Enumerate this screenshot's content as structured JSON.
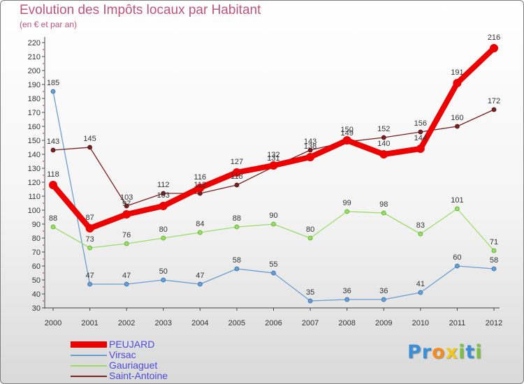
{
  "header": {
    "title": "Evolution des Impôts locaux par Habitant",
    "subtitle": "(en € et par an)"
  },
  "chart_data": {
    "type": "line",
    "title": "Evolution des Impôts locaux par Habitant",
    "subtitle": "(en € et par an)",
    "xlabel": "",
    "ylabel": "",
    "categories": [
      "2000",
      "2001",
      "2002",
      "2003",
      "2004",
      "2005",
      "2006",
      "2007",
      "2008",
      "2009",
      "2010",
      "2011",
      "2012"
    ],
    "ylim": [
      30,
      220
    ],
    "yticks": [
      30,
      40,
      50,
      60,
      70,
      80,
      90,
      100,
      110,
      120,
      130,
      140,
      150,
      160,
      170,
      180,
      190,
      200,
      210,
      220
    ],
    "grid": false,
    "legend_position": "bottom-left",
    "series": [
      {
        "name": "PEUJARD",
        "color": "#ee0000",
        "values": [
          118,
          87,
          97,
          103,
          116,
          127,
          132,
          138,
          150,
          140,
          144,
          191,
          216
        ],
        "labels": [
          "118",
          "87",
          "97",
          "103",
          "116",
          "127",
          "132",
          "138",
          "150",
          "140",
          "144",
          "191",
          "216"
        ]
      },
      {
        "name": "Virsac",
        "color": "#6a9ed2",
        "values": [
          185,
          47,
          47,
          50,
          47,
          58,
          55,
          35,
          36,
          36,
          41,
          60,
          58
        ],
        "labels": [
          "185",
          "47",
          "47",
          "50",
          "47",
          "58",
          "55",
          "35",
          "36",
          "36",
          "41",
          "60",
          "58"
        ]
      },
      {
        "name": "Gauriaguet",
        "color": "#99dd66",
        "values": [
          88,
          73,
          76,
          80,
          84,
          88,
          90,
          80,
          99,
          98,
          83,
          101,
          71
        ],
        "labels": [
          "88",
          "73",
          "76",
          "80",
          "84",
          "88",
          "90",
          "80",
          "99",
          "98",
          "83",
          "101",
          "71"
        ]
      },
      {
        "name": "Saint-Antoine",
        "color": "#7a2020",
        "values": [
          143,
          145,
          103,
          112,
          112,
          118,
          131,
          143,
          149,
          152,
          156,
          160,
          172
        ],
        "labels": [
          "143",
          "145",
          "103",
          "112",
          "112",
          "118",
          "131",
          "143",
          "149",
          "152",
          "156",
          "160",
          "172"
        ]
      }
    ]
  },
  "legend": {
    "items": [
      {
        "label": "PEUJARD",
        "color": "#ee0000"
      },
      {
        "label": "Virsac",
        "color": "#6a9ed2"
      },
      {
        "label": "Gauriaguet",
        "color": "#99dd66"
      },
      {
        "label": "Saint-Antoine",
        "color": "#7a2020"
      }
    ]
  },
  "brand": {
    "name": "Proxiti",
    "letters": [
      "P",
      "r",
      "o",
      "x",
      "i",
      "t",
      "i"
    ],
    "colors": [
      "#3b8fd8",
      "#3b8fd8",
      "#f28c1e",
      "#f2c81e",
      "#7ac142",
      "#3b8fd8",
      "#7ac142"
    ]
  }
}
